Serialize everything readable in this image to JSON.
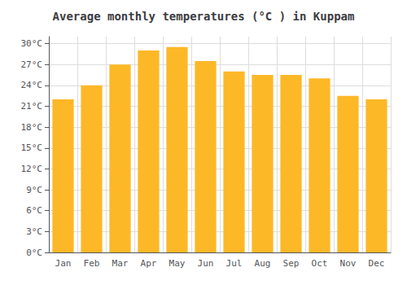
{
  "chart_data": {
    "type": "bar",
    "title": "Average monthly temperatures (°C ) in Kuppam",
    "categories": [
      "Jan",
      "Feb",
      "Mar",
      "Apr",
      "May",
      "Jun",
      "Jul",
      "Aug",
      "Sep",
      "Oct",
      "Nov",
      "Dec"
    ],
    "values": [
      22,
      24,
      27,
      29,
      29.5,
      27.5,
      26,
      25.5,
      25.5,
      25,
      22.5,
      22
    ],
    "color": "#FDB827",
    "ylim": [
      0,
      31
    ],
    "yticks": [
      {
        "value": 0,
        "label": "0°C"
      },
      {
        "value": 3,
        "label": "3°C"
      },
      {
        "value": 6,
        "label": "6°C"
      },
      {
        "value": 9,
        "label": "9°C"
      },
      {
        "value": 12,
        "label": "12°C"
      },
      {
        "value": 15,
        "label": "15°C"
      },
      {
        "value": 18,
        "label": "18°C"
      },
      {
        "value": 21,
        "label": "21°C"
      },
      {
        "value": 24,
        "label": "24°C"
      },
      {
        "value": 27,
        "label": "27°C"
      },
      {
        "value": 30,
        "label": "30°C"
      }
    ],
    "grid": true
  }
}
